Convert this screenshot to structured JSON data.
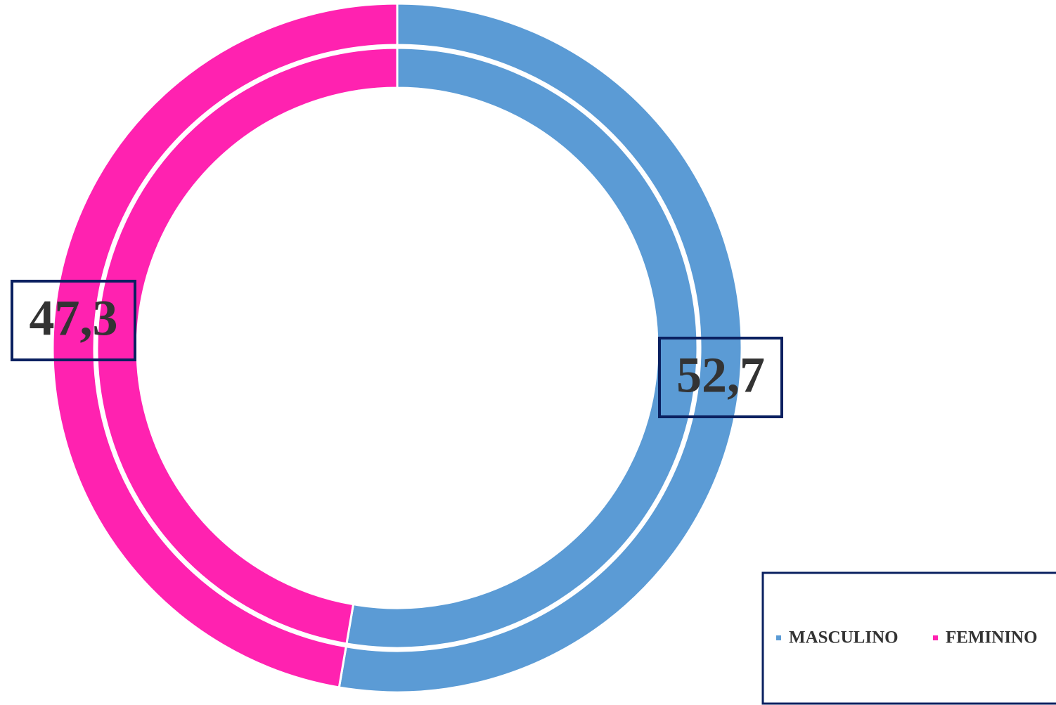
{
  "chart_data": {
    "type": "donut",
    "series": [
      {
        "categories": [
          "MASCULINO",
          "FEMININO"
        ],
        "values": [
          52.7,
          47.3
        ],
        "value_labels": [
          "52,7",
          "47,3"
        ],
        "colors": [
          "#5b9bd5",
          "#ff22b0"
        ]
      }
    ]
  }
}
